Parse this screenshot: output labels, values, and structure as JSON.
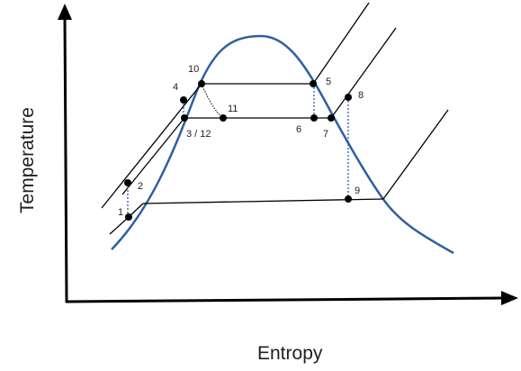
{
  "diagram": {
    "x_axis_label": "Entropy",
    "y_axis_label": "Temperature",
    "state_point_labels": {
      "p1": "1",
      "p2": "2",
      "p3_12": "3 / 12",
      "p4": "4",
      "p5": "5",
      "p6": "6",
      "p7": "7",
      "p8": "8",
      "p9": "9",
      "p10": "10",
      "p11": "11"
    },
    "colors": {
      "saturation_dome": "#2e5fa3",
      "process_lines": "#000000",
      "dotted_connectors": "#2e5fa3",
      "state_points": "#000000"
    }
  }
}
